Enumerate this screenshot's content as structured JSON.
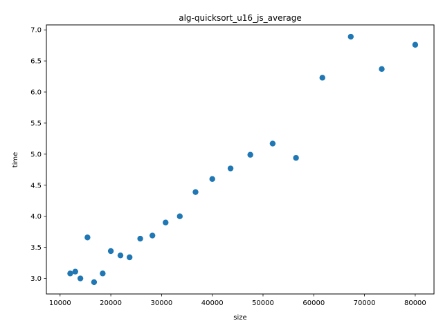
{
  "chart_data": {
    "type": "scatter",
    "title": "alg-quicksort_u16_js_average",
    "xlabel": "size",
    "ylabel": "time",
    "xlim": [
      7300,
      83700
    ],
    "ylim": [
      2.75,
      7.08
    ],
    "xticks": [
      10000,
      20000,
      30000,
      40000,
      50000,
      60000,
      70000,
      80000
    ],
    "xtick_labels": [
      "10000",
      "20000",
      "30000",
      "40000",
      "50000",
      "60000",
      "70000",
      "80000"
    ],
    "yticks": [
      3.0,
      3.5,
      4.0,
      4.5,
      5.0,
      5.5,
      6.0,
      6.5,
      7.0
    ],
    "ytick_labels": [
      "3.0",
      "3.5",
      "4.0",
      "4.5",
      "5.0",
      "5.5",
      "6.0",
      "6.5",
      "7.0"
    ],
    "grid": false,
    "marker_color": "#1f77b4",
    "points": [
      {
        "x": 12000,
        "y": 3.08
      },
      {
        "x": 13000,
        "y": 3.11
      },
      {
        "x": 14000,
        "y": 3.0
      },
      {
        "x": 15400,
        "y": 3.66
      },
      {
        "x": 16700,
        "y": 2.94
      },
      {
        "x": 18400,
        "y": 3.08
      },
      {
        "x": 20000,
        "y": 3.44
      },
      {
        "x": 21900,
        "y": 3.37
      },
      {
        "x": 23700,
        "y": 3.34
      },
      {
        "x": 25800,
        "y": 3.64
      },
      {
        "x": 28200,
        "y": 3.69
      },
      {
        "x": 30800,
        "y": 3.9
      },
      {
        "x": 33600,
        "y": 4.0
      },
      {
        "x": 36700,
        "y": 4.39
      },
      {
        "x": 40000,
        "y": 4.6
      },
      {
        "x": 43600,
        "y": 4.77
      },
      {
        "x": 47500,
        "y": 4.99
      },
      {
        "x": 51900,
        "y": 5.17
      },
      {
        "x": 56500,
        "y": 4.94
      },
      {
        "x": 61700,
        "y": 6.23
      },
      {
        "x": 67300,
        "y": 6.89
      },
      {
        "x": 73400,
        "y": 6.37
      },
      {
        "x": 80000,
        "y": 6.76
      }
    ]
  }
}
